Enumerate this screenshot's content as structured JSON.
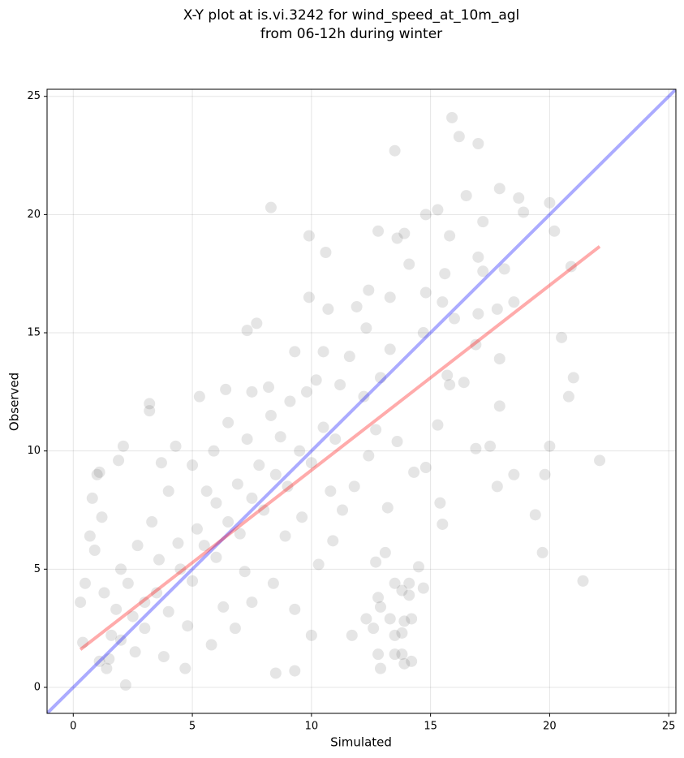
{
  "chart_data": {
    "type": "scatter",
    "title": [
      "X-Y plot at is.vi.3242 for wind_speed_at_10m_agl",
      "from 06-12h during winter"
    ],
    "x_label": "Simulated",
    "y_label": "Observed",
    "xlim": [
      -1.1,
      25.3
    ],
    "ylim": [
      -1.1,
      25.3
    ],
    "xticks": [
      0,
      5,
      10,
      15,
      20,
      25
    ],
    "yticks": [
      0,
      5,
      10,
      15,
      20,
      25
    ],
    "grid": true,
    "color": "#333333",
    "x": [
      15.9,
      16.2,
      17,
      13.5,
      16.5,
      17.9,
      18.7,
      20,
      15.3,
      14.8,
      18.9,
      8.3,
      17.2,
      20.2,
      12.8,
      15.8,
      9.9,
      13.9,
      13.6,
      10.6,
      17,
      17.2,
      18.1,
      20.9,
      15.6,
      14.1,
      12.4,
      13.3,
      14.8,
      9.9,
      10.7,
      11.9,
      15.5,
      17.8,
      18.5,
      17,
      16,
      7.7,
      7.3,
      12.3,
      14.7,
      13.3,
      16.9,
      20.5,
      17.9,
      15.7,
      16.4,
      15.8,
      21,
      20.8,
      3.2,
      3.2,
      17.9,
      15.3,
      16.9,
      17.5,
      20,
      13.6,
      14.3,
      14.8,
      22.1,
      18.5,
      19.8,
      17.8,
      15.4,
      13.2,
      15.5,
      19.4,
      19.7,
      21.4,
      14.5,
      13.1,
      12.7,
      13.5,
      14.1,
      14.7,
      13.8,
      12.8,
      12.9,
      14.1,
      13.3,
      13.9,
      14.2,
      12.3,
      12.6,
      13.5,
      13.8,
      13.5,
      12.8,
      13.8,
      14.2,
      13.9,
      12.9,
      11.7,
      10,
      9.3,
      8.5,
      2.2,
      1.4,
      0.4,
      0.3,
      0.5,
      0.7,
      1,
      1.1,
      1.9,
      2.1,
      0.8,
      0.9,
      1.2,
      1.5,
      2,
      2.5,
      3,
      3.5,
      4,
      4.5,
      5,
      5.5,
      6,
      6.5,
      7,
      7.5,
      8,
      8.5,
      9,
      9.5,
      10,
      10.5,
      11,
      9.8,
      10.2,
      10.5,
      9.1,
      8.7,
      8.3,
      7.5,
      6.5,
      5.9,
      5,
      4,
      3.3,
      2.7,
      2,
      1.3,
      1.8,
      2.6,
      3.8,
      4.7,
      5.8,
      6.8,
      7.5,
      8.4,
      9.3,
      10.3,
      10.9,
      11.3,
      11.8,
      12.4,
      12.7,
      12.2,
      11.2,
      11.6,
      12.9,
      6,
      5.2,
      4.4,
      3.6,
      6.3,
      7.2,
      8.9,
      9.6,
      10.8,
      7.8,
      6.9,
      4.8,
      3,
      2.3,
      1.6,
      1.1,
      5.6,
      7.3,
      8.2,
      9.3,
      6.4,
      5.3,
      4.3,
      3.7
    ],
    "values": [
      24.1,
      23.3,
      23,
      22.7,
      20.8,
      21.1,
      20.7,
      20.5,
      20.2,
      20,
      20.1,
      20.3,
      19.7,
      19.3,
      19.3,
      19.1,
      19.1,
      19.2,
      19,
      18.4,
      18.2,
      17.6,
      17.7,
      17.8,
      17.5,
      17.9,
      16.8,
      16.5,
      16.7,
      16.5,
      16,
      16.1,
      16.3,
      16,
      16.3,
      15.8,
      15.6,
      15.4,
      15.1,
      15.2,
      15,
      14.3,
      14.5,
      14.8,
      13.9,
      13.2,
      12.9,
      12.8,
      13.1,
      12.3,
      12,
      11.7,
      11.9,
      11.1,
      10.1,
      10.2,
      10.2,
      10.4,
      9.1,
      9.3,
      9.6,
      9,
      9,
      8.5,
      7.8,
      7.6,
      6.9,
      7.3,
      5.7,
      4.5,
      5.1,
      5.7,
      5.3,
      4.4,
      4.4,
      4.2,
      4.1,
      3.8,
      3.4,
      3.9,
      2.9,
      2.8,
      2.9,
      2.9,
      2.5,
      2.2,
      2.3,
      1.4,
      1.4,
      1.4,
      1.1,
      1,
      0.8,
      2.2,
      2.2,
      0.7,
      0.6,
      0.1,
      0.8,
      1.9,
      3.6,
      4.4,
      6.4,
      9,
      9.1,
      9.6,
      10.2,
      8,
      5.8,
      7.2,
      1.2,
      2,
      3,
      2.5,
      4,
      3.2,
      5,
      4.5,
      6,
      5.5,
      7,
      6.5,
      8,
      7.5,
      9,
      8.5,
      10,
      9.5,
      11,
      10.5,
      12.5,
      13,
      14.2,
      12.1,
      10.6,
      11.5,
      12.5,
      11.2,
      10,
      9.4,
      8.3,
      7,
      6,
      5,
      4,
      3.3,
      1.5,
      1.3,
      0.8,
      1.8,
      2.5,
      3.6,
      4.4,
      3.3,
      5.2,
      6.2,
      7.5,
      8.5,
      9.8,
      10.9,
      12.3,
      12.8,
      14,
      13.1,
      7.8,
      6.7,
      6.1,
      5.4,
      3.4,
      4.9,
      6.4,
      7.2,
      8.3,
      9.4,
      8.6,
      2.6,
      3.6,
      4.4,
      2.2,
      1.1,
      8.3,
      10.5,
      12.7,
      14.2,
      12.6,
      12.3,
      10.2,
      9.5
    ],
    "lines": [
      {
        "color": "#0000ff",
        "x": [
          -1.1,
          25.3
        ],
        "values": [
          -1.1,
          25.3
        ]
      },
      {
        "color": "#ff0000",
        "x": [
          0.3,
          22.1
        ],
        "values": [
          1.6,
          18.65
        ]
      }
    ]
  }
}
